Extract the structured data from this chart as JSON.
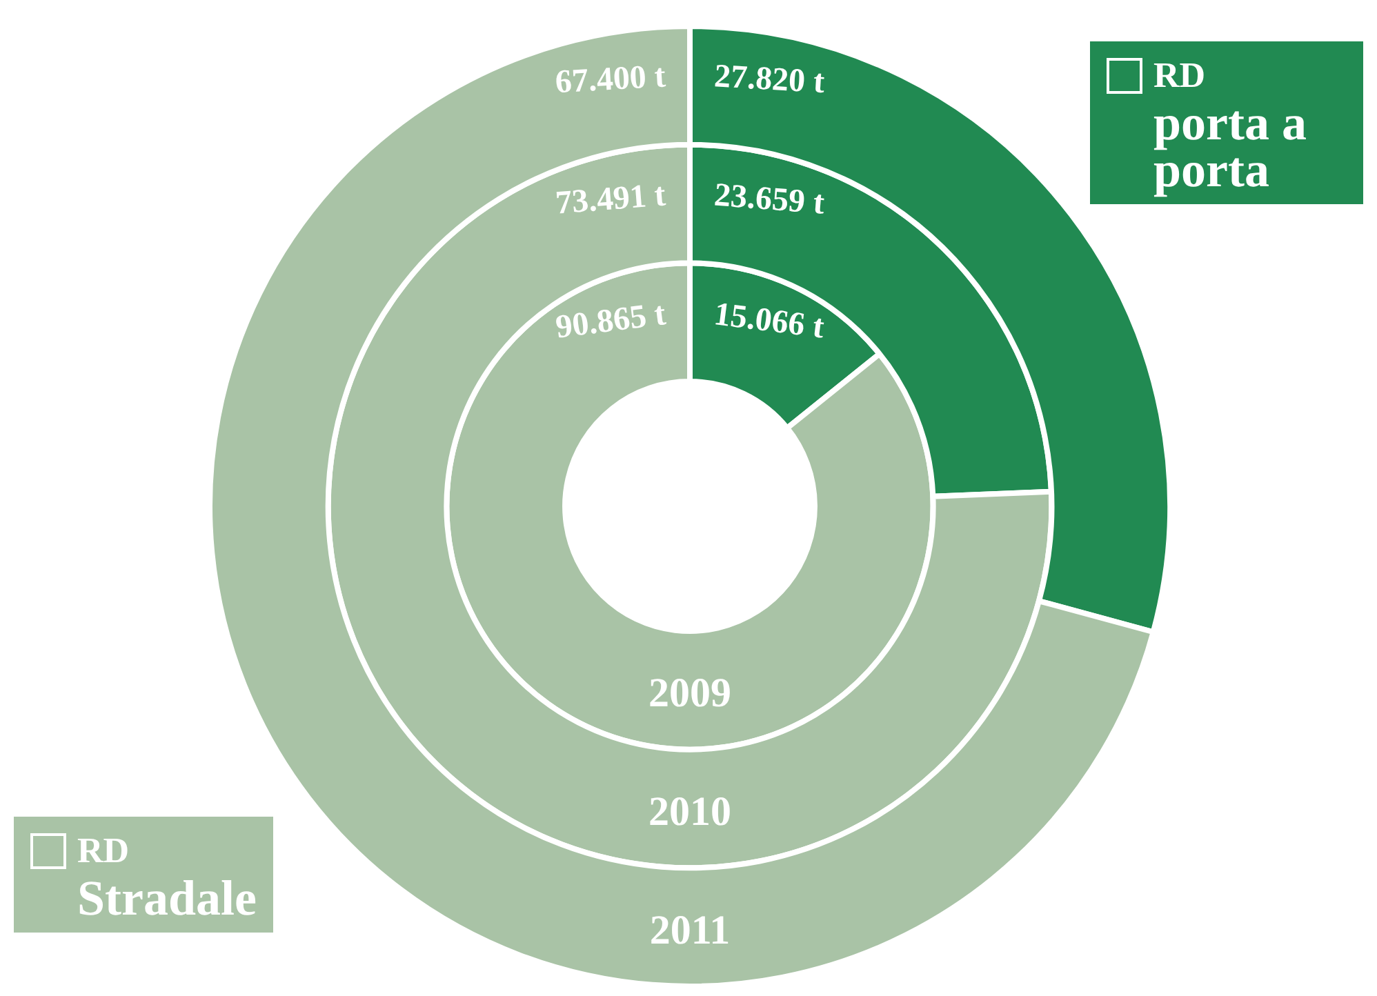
{
  "chart_data": {
    "type": "donut",
    "categories": [
      "RD porta a porta",
      "RD Stradale"
    ],
    "colors": [
      "#218a52",
      "#a9c3a6"
    ],
    "legend": "top right",
    "series": [
      {
        "name": "2009",
        "values": [
          15.066,
          90.865
        ],
        "value_labels": [
          "15.066 t",
          "90.865 t"
        ]
      },
      {
        "name": "2010",
        "values": [
          23.659,
          73.491
        ],
        "value_labels": [
          "23.659 t",
          "73.491 t"
        ]
      },
      {
        "name": "2011",
        "values": [
          27.82,
          67.4
        ],
        "value_labels": [
          "27.820 t",
          "67.400 t"
        ]
      }
    ]
  }
}
